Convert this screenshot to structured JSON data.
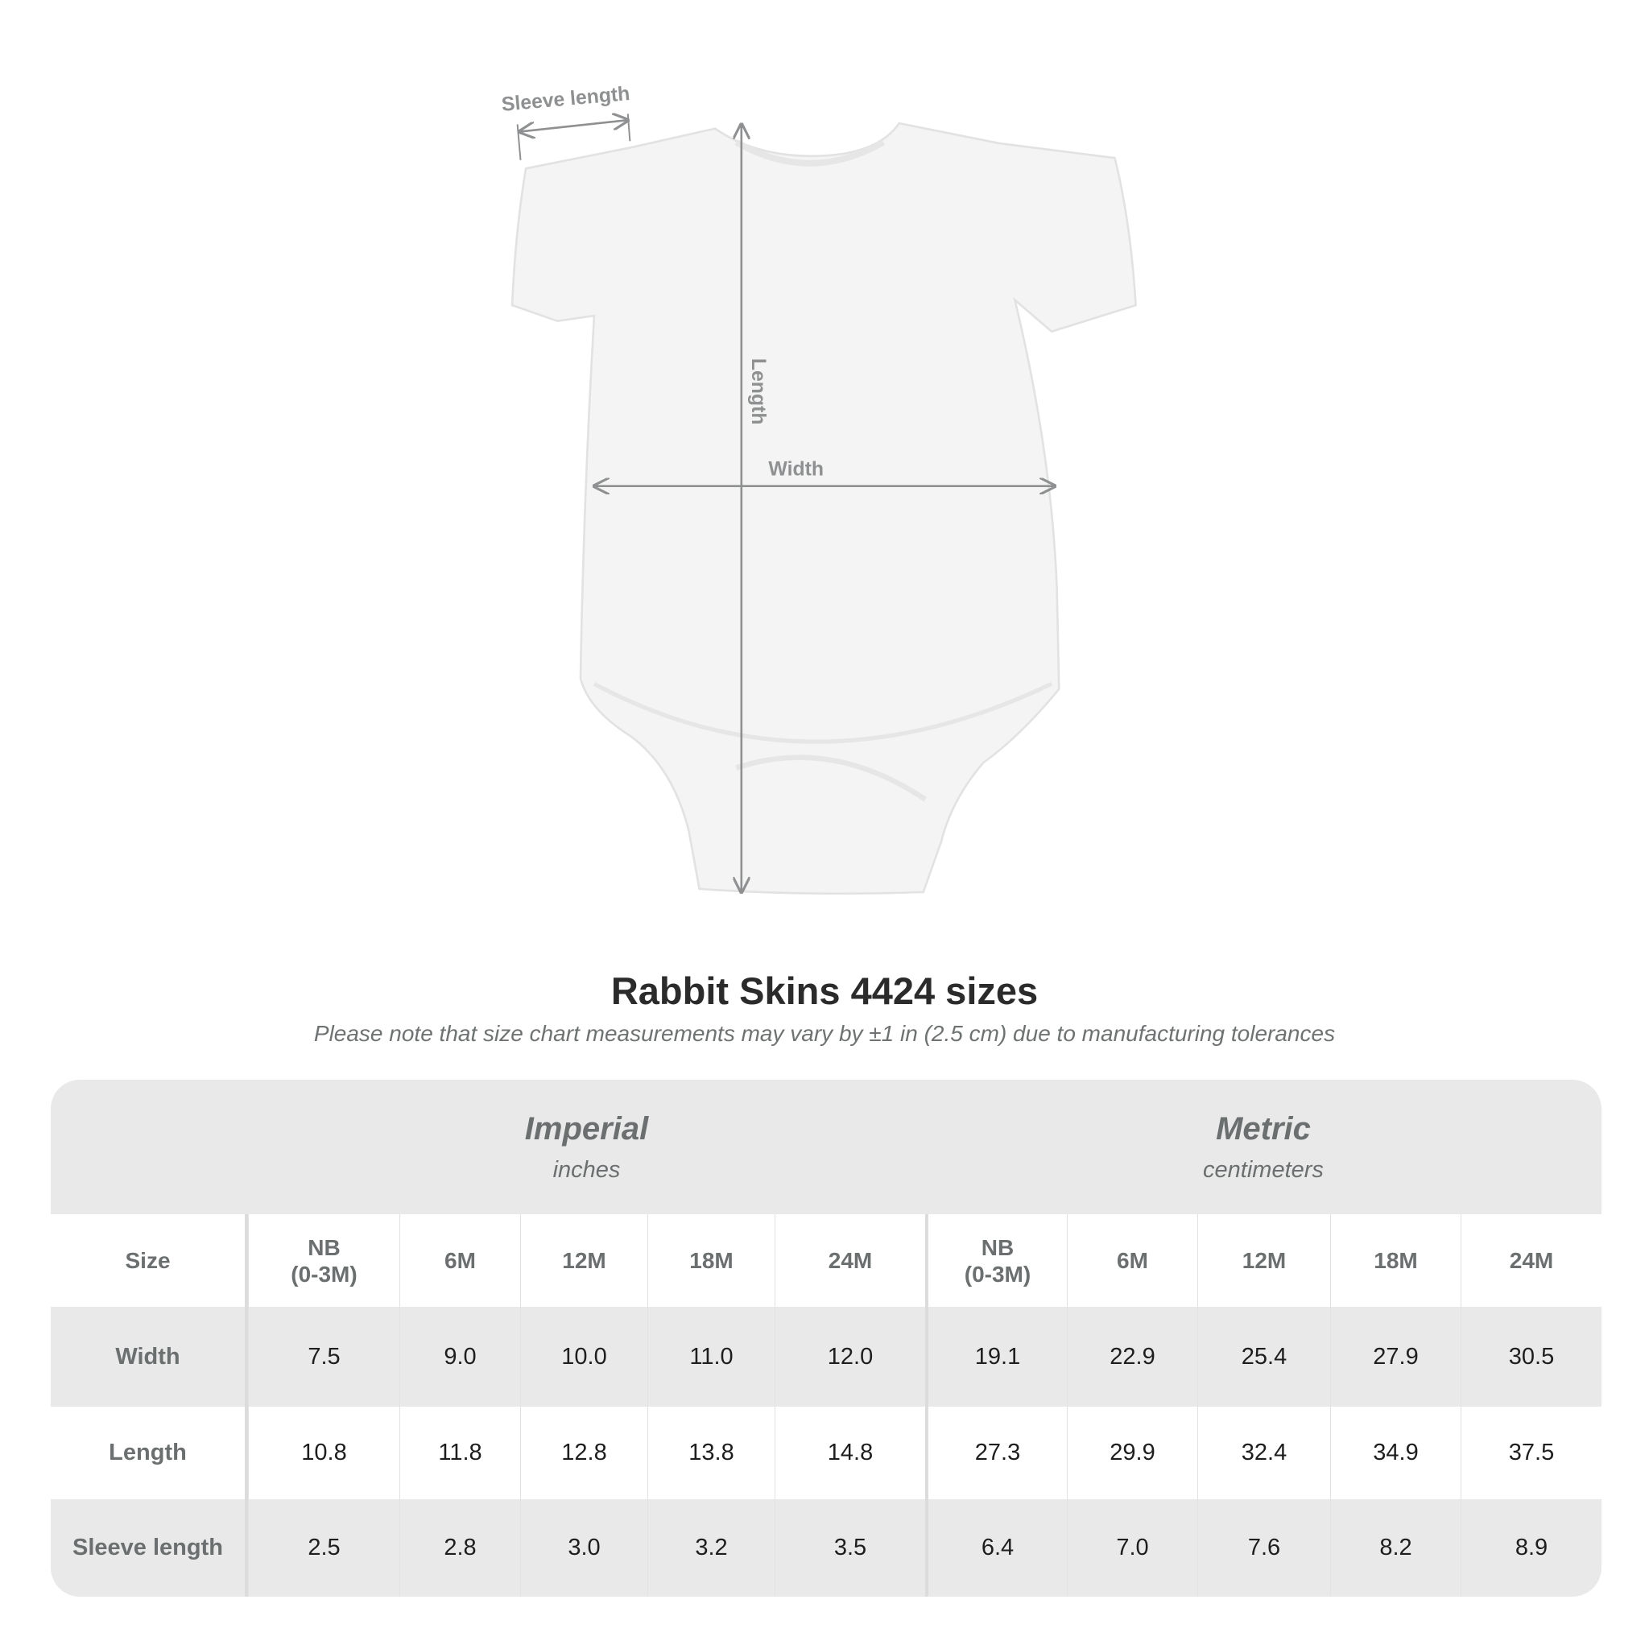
{
  "diagram": {
    "labels": {
      "sleeve": "Sleeve length",
      "length": "Length",
      "width": "Width"
    },
    "garment_color": "#f4f4f4",
    "arrow_color": "#8e9091"
  },
  "title": "Rabbit Skins 4424 sizes",
  "subtitle": "Please note that size chart measurements may vary by ±1 in (2.5 cm) due to manufacturing tolerances",
  "table": {
    "imperial": {
      "label": "Imperial",
      "unit": "inches"
    },
    "metric": {
      "label": "Metric",
      "unit": "centimeters"
    },
    "size_label": "Size",
    "sizes": [
      [
        "NB",
        "(0-3M)"
      ],
      [
        "6M",
        ""
      ],
      [
        "12M",
        ""
      ],
      [
        "18M",
        ""
      ],
      [
        "24M",
        ""
      ]
    ],
    "rows": [
      {
        "label": "Width",
        "imperial": [
          "7.5",
          "9.0",
          "10.0",
          "11.0",
          "12.0"
        ],
        "metric": [
          "19.1",
          "22.9",
          "25.4",
          "27.9",
          "30.5"
        ]
      },
      {
        "label": "Length",
        "imperial": [
          "10.8",
          "11.8",
          "12.8",
          "13.8",
          "14.8"
        ],
        "metric": [
          "27.3",
          "29.9",
          "32.4",
          "34.9",
          "37.5"
        ]
      },
      {
        "label": "Sleeve length",
        "imperial": [
          "2.5",
          "2.8",
          "3.0",
          "3.2",
          "3.5"
        ],
        "metric": [
          "6.4",
          "7.0",
          "7.6",
          "8.2",
          "8.9"
        ]
      }
    ],
    "colors": {
      "header_bg": "#e9e9e9",
      "label_text": "#6b6f70"
    }
  }
}
